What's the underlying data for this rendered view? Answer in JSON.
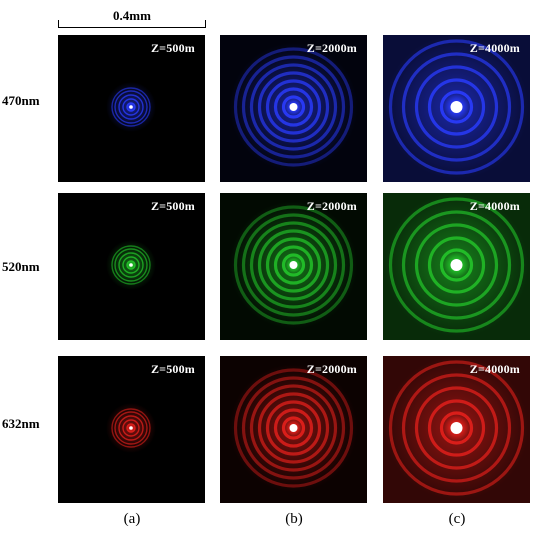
{
  "scale_bar": {
    "label": "0.4mm"
  },
  "rows": [
    {
      "label": "470nm",
      "color": "#2a3cff"
    },
    {
      "label": "520nm",
      "color": "#23c42a"
    },
    {
      "label": "632nm",
      "color": "#e4201c"
    }
  ],
  "columns": [
    "(a)",
    "(b)",
    "(c)"
  ],
  "distances": [
    "Z=500m",
    "Z=2000m",
    "Z=4000m"
  ],
  "panels": [
    {
      "row": 0,
      "col": 0,
      "z": "Z=500m"
    },
    {
      "row": 0,
      "col": 1,
      "z": "Z=2000m"
    },
    {
      "row": 0,
      "col": 2,
      "z": "Z=4000m"
    },
    {
      "row": 1,
      "col": 0,
      "z": "Z=500m"
    },
    {
      "row": 1,
      "col": 1,
      "z": "Z=2000m"
    },
    {
      "row": 1,
      "col": 2,
      "z": "Z=4000m"
    },
    {
      "row": 2,
      "col": 0,
      "z": "Z=500m"
    },
    {
      "row": 2,
      "col": 1,
      "z": "Z=2000m"
    },
    {
      "row": 2,
      "col": 2,
      "z": "Z=4000m"
    }
  ]
}
